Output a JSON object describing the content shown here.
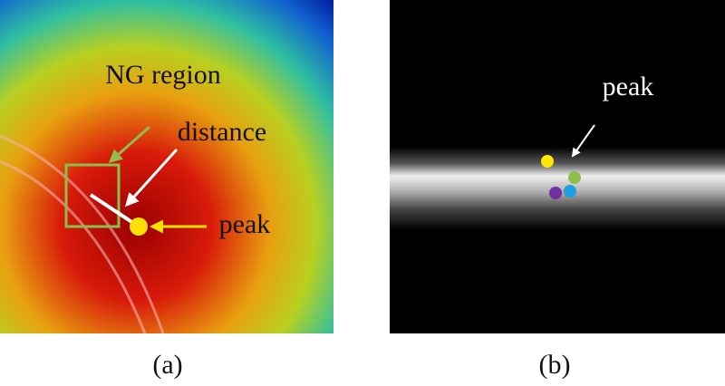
{
  "panels": [
    {
      "caption": "(a)",
      "labels": [
        "NG region",
        "distance",
        "peak"
      ]
    },
    {
      "caption": "(b)",
      "labels": [
        "peak"
      ]
    }
  ]
}
